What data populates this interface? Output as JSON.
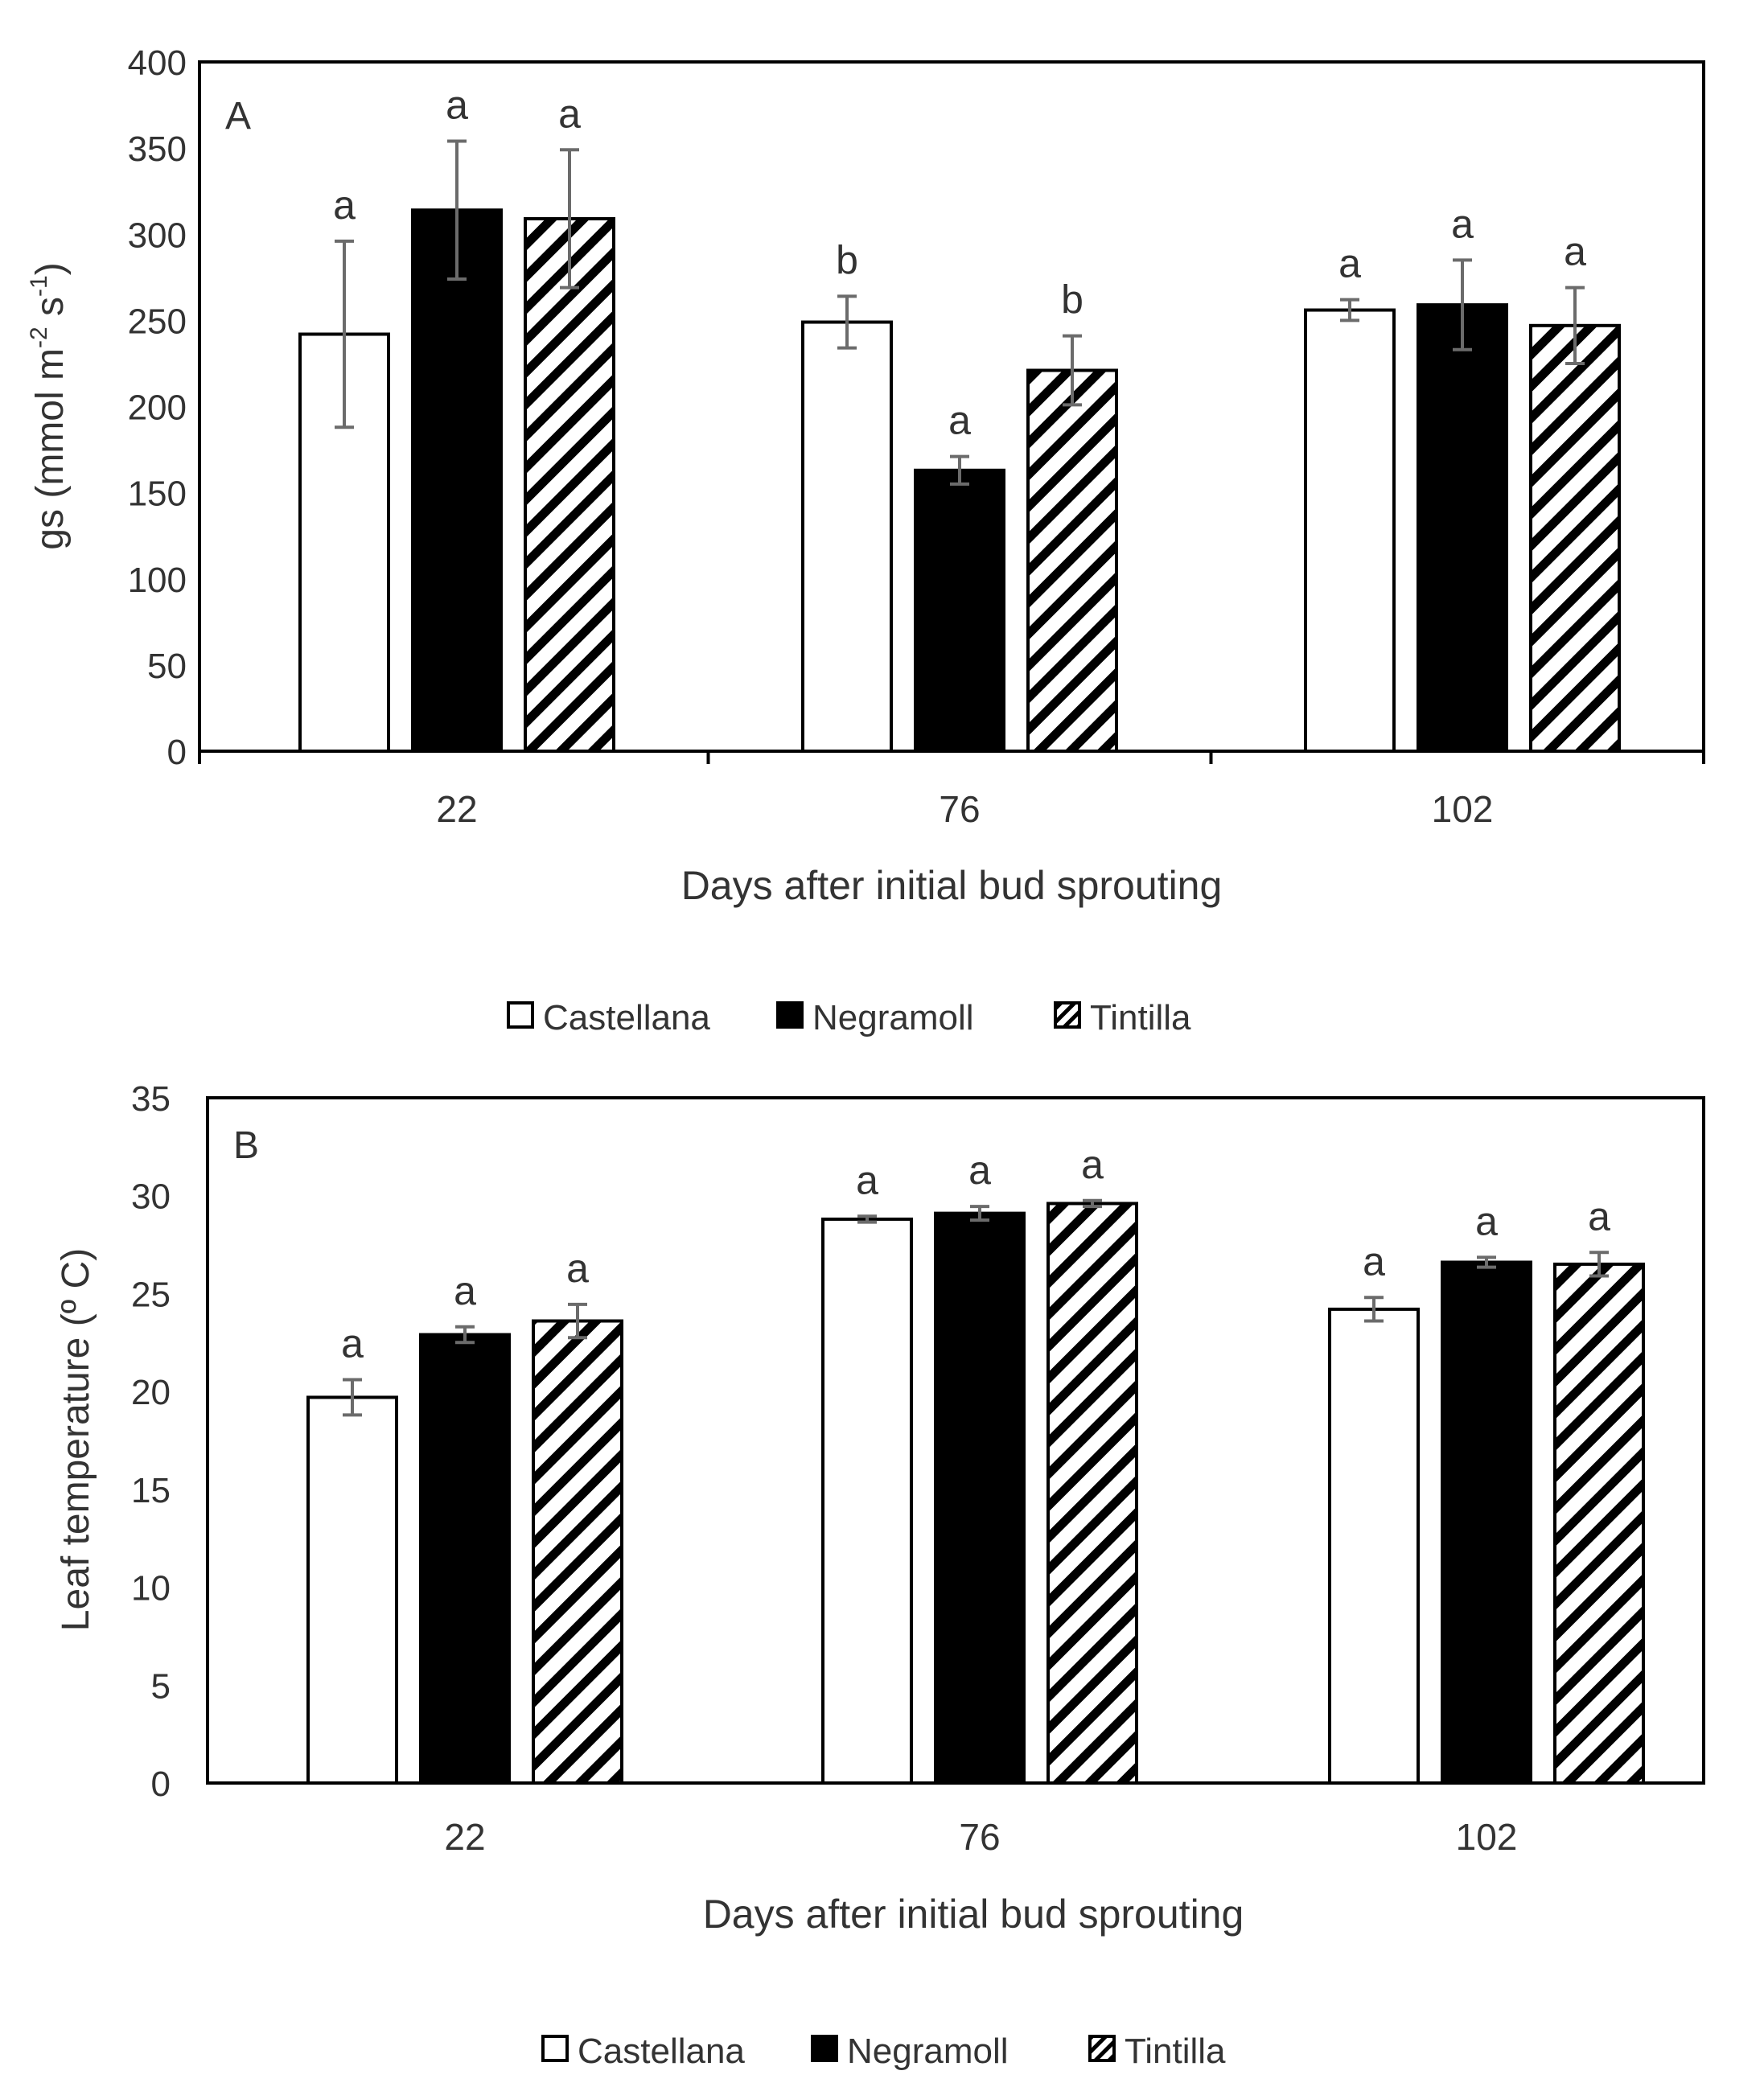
{
  "legend_entries": [
    "Castellana",
    "Negramoll",
    "Tintilla"
  ],
  "colors": {
    "Castellana": "#ffffff",
    "Negramoll": "#000000",
    "Tintilla": "hatch",
    "error_bar": "#6b6b6b",
    "axis": "#000000"
  },
  "chart_data": [
    {
      "type": "bar",
      "panel_label": "A",
      "xlabel": "Days after initial bud sprouting",
      "ylabel_parts": [
        "gs (mmol m",
        "-2",
        " s",
        "-1",
        ")"
      ],
      "ylim": [
        0,
        400
      ],
      "yticks": [
        "0",
        "50",
        "100",
        "150",
        "200",
        "250",
        "300",
        "350",
        "400"
      ],
      "categories": [
        "22",
        "76",
        "102"
      ],
      "series": [
        {
          "name": "Castellana",
          "values": [
            242,
            249,
            256
          ],
          "errors": [
            54,
            15,
            6
          ],
          "letters": [
            "a",
            "b",
            "a"
          ]
        },
        {
          "name": "Negramoll",
          "values": [
            314,
            163,
            259
          ],
          "errors": [
            40,
            8,
            26
          ],
          "letters": [
            "a",
            "a",
            "a"
          ]
        },
        {
          "name": "Tintilla",
          "values": [
            309,
            221,
            247
          ],
          "errors": [
            40,
            20,
            22
          ],
          "letters": [
            "a",
            "b",
            "a"
          ]
        }
      ],
      "legend_position": "bottom",
      "grid": false
    },
    {
      "type": "bar",
      "panel_label": "B",
      "xlabel": "Days after initial bud sprouting",
      "ylabel_parts": [
        "Leaf temperature (º C)"
      ],
      "ylim": [
        0,
        35
      ],
      "yticks": [
        "0",
        "5",
        "10",
        "15",
        "20",
        "25",
        "30",
        "35"
      ],
      "categories": [
        "22",
        "76",
        "102"
      ],
      "series": [
        {
          "name": "Castellana",
          "values": [
            19.7,
            28.8,
            24.2
          ],
          "errors": [
            0.9,
            0.15,
            0.6
          ],
          "letters": [
            "a",
            "a",
            "a"
          ]
        },
        {
          "name": "Negramoll",
          "values": [
            22.9,
            29.1,
            26.6
          ],
          "errors": [
            0.4,
            0.35,
            0.25
          ],
          "letters": [
            "a",
            "a",
            "a"
          ]
        },
        {
          "name": "Tintilla",
          "values": [
            23.6,
            29.6,
            26.5
          ],
          "errors": [
            0.85,
            0.15,
            0.6
          ],
          "letters": [
            "a",
            "a",
            "a"
          ]
        }
      ],
      "legend_position": "bottom",
      "grid": false
    }
  ]
}
